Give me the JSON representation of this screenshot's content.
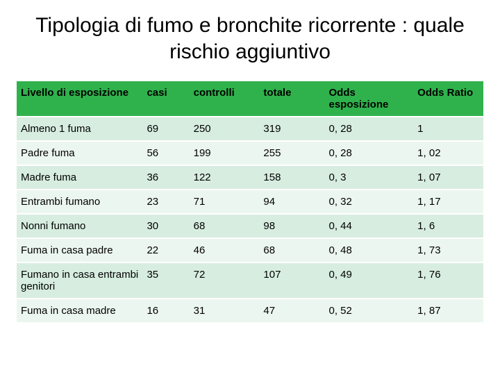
{
  "title": "Tipologia di fumo e bronchite ricorrente : quale rischio aggiuntivo",
  "table": {
    "type": "table",
    "header_bg": "#2fb24c",
    "row_bg_alt": [
      "#d7ede0",
      "#ecf6f0"
    ],
    "header_text_color": "#000000",
    "cell_text_color": "#000000",
    "font_size": 15,
    "header_font_weight": 700,
    "columns": [
      {
        "label": "Livello  di esposizione",
        "key": "level",
        "width": "27%"
      },
      {
        "label": "casi",
        "key": "casi",
        "width": "10%"
      },
      {
        "label": "controlli",
        "key": "ctrl",
        "width": "15%"
      },
      {
        "label": "totale",
        "key": "tot",
        "width": "14%"
      },
      {
        "label": "Odds esposizione",
        "key": "odds1",
        "width": "19%"
      },
      {
        "label": "Odds Ratio",
        "key": "odds2",
        "width": "15%"
      }
    ],
    "rows": [
      {
        "level": "Almeno 1 fuma",
        "casi": "69",
        "ctrl": "250",
        "tot": "319",
        "odds1": "0, 28",
        "odds2": "1"
      },
      {
        "level": "Padre fuma",
        "casi": "56",
        "ctrl": "199",
        "tot": "255",
        "odds1": "0, 28",
        "odds2": "1, 02"
      },
      {
        "level": "Madre fuma",
        "casi": "36",
        "ctrl": "122",
        "tot": "158",
        "odds1": "0, 3",
        "odds2": "1, 07"
      },
      {
        "level": "Entrambi fumano",
        "casi": "23",
        "ctrl": "71",
        "tot": "94",
        "odds1": "0, 32",
        "odds2": "1, 17"
      },
      {
        "level": "Nonni fumano",
        "casi": "30",
        "ctrl": "68",
        "tot": "98",
        "odds1": "0, 44",
        "odds2": "1, 6"
      },
      {
        "level": "Fuma in casa padre",
        "casi": "22",
        "ctrl": "46",
        "tot": "68",
        "odds1": "0, 48",
        "odds2": "1, 73"
      },
      {
        "level": "Fumano in casa entrambi genitori",
        "casi": "35",
        "ctrl": "72",
        "tot": "107",
        "odds1": "0, 49",
        "odds2": "1, 76"
      },
      {
        "level": "Fuma in casa madre",
        "casi": "16",
        "ctrl": "31",
        "tot": "47",
        "odds1": "0, 52",
        "odds2": "1, 87"
      }
    ]
  }
}
